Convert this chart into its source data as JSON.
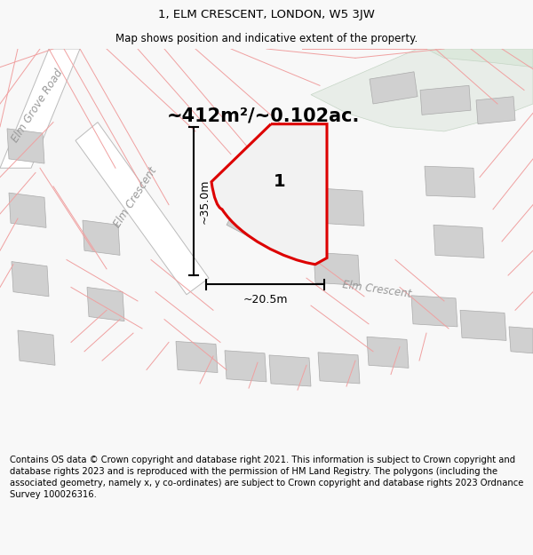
{
  "title_line1": "1, ELM CRESCENT, LONDON, W5 3JW",
  "title_line2": "Map shows position and indicative extent of the property.",
  "footer_text": "Contains OS data © Crown copyright and database right 2021. This information is subject to Crown copyright and database rights 2023 and is reproduced with the permission of HM Land Registry. The polygons (including the associated geometry, namely x, y co-ordinates) are subject to Crown copyright and database rights 2023 Ordnance Survey 100026316.",
  "area_label": "~412m²/~0.102ac.",
  "plot_number": "1",
  "dim_vertical": "~35.0m",
  "dim_horizontal": "~20.5m",
  "road_label_grove": "Elm Grove Road",
  "road_label_cresc1": "Elm Crescent",
  "road_label_cresc2": "Elm Crescent",
  "bg_color": "#f8f8f8",
  "map_bg": "#ffffff",
  "plot_fill": "#f2f2f2",
  "plot_edge_color": "#dd0000",
  "road_fill": "#ffffff",
  "green_fill": "#e8ede8",
  "gray_block_fill": "#d0d0d0",
  "light_red_line": "#f0a0a0",
  "dim_line_color": "#000000",
  "title_fontsize": 9.5,
  "subtitle_fontsize": 8.5,
  "footer_fontsize": 7.2,
  "area_label_fontsize": 15,
  "plot_num_fontsize": 14,
  "road_label_fontsize": 8.5,
  "dim_label_fontsize": 9
}
